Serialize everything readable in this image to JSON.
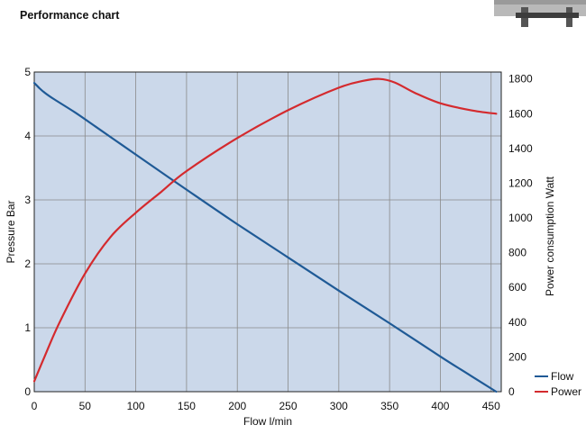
{
  "heading": "Performance chart",
  "chart_data": {
    "type": "line",
    "xlabel": "Flow l/min",
    "ylabel_left": "Pressure Bar",
    "ylabel_right": "Power consumption Watt",
    "xlim": [
      0,
      460
    ],
    "ylim_left": [
      0,
      5
    ],
    "ylim_right": [
      0,
      1840
    ],
    "x_ticks": [
      "0",
      "50",
      "100",
      "150",
      "200",
      "250",
      "300",
      "350",
      "400",
      "450"
    ],
    "y_left_ticks": [
      "0",
      "1",
      "2",
      "3",
      "4",
      "5"
    ],
    "y_right_ticks": [
      "0",
      "200",
      "400",
      "600",
      "800",
      "1000",
      "1200",
      "1400",
      "1600",
      "1800"
    ],
    "grid": true,
    "legend_position": "bottom-right",
    "series": [
      {
        "name": "Flow",
        "axis": "left",
        "color": "#1f5a96",
        "x": [
          0,
          5,
          10,
          20,
          40,
          60,
          80,
          100,
          150,
          200,
          250,
          300,
          350,
          400,
          430,
          455
        ],
        "y": [
          4.83,
          4.75,
          4.68,
          4.57,
          4.37,
          4.15,
          3.93,
          3.71,
          3.16,
          2.62,
          2.1,
          1.58,
          1.07,
          0.55,
          0.25,
          0.0
        ]
      },
      {
        "name": "Power",
        "axis": "right",
        "color": "#d42a2e",
        "x": [
          0,
          10,
          25,
          50,
          75,
          100,
          125,
          150,
          200,
          250,
          300,
          325,
          340,
          355,
          375,
          400,
          430,
          455
        ],
        "y": [
          60,
          200,
          400,
          680,
          890,
          1030,
          1150,
          1270,
          1460,
          1620,
          1750,
          1790,
          1800,
          1780,
          1720,
          1660,
          1620,
          1600
        ]
      }
    ]
  }
}
